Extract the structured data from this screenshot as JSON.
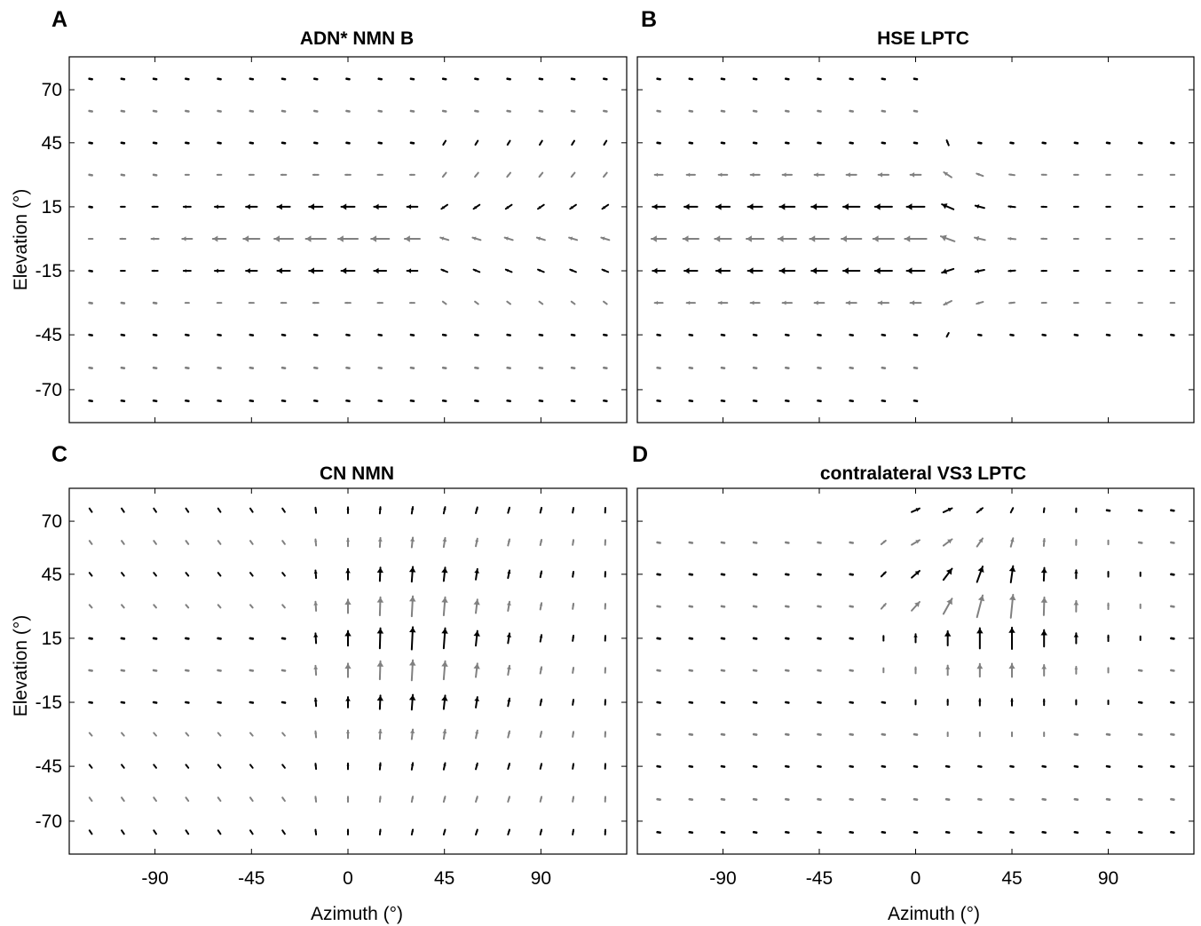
{
  "figure": {
    "colors": {
      "primary": "#000000",
      "secondary": "#808080"
    }
  },
  "chart_data": [
    {
      "type": "vector_field",
      "letter": "A",
      "title": "ADN* NMN B",
      "xlabel": "",
      "ylabel": "Elevation (°)",
      "xticks": [
        -90,
        -45,
        0,
        45,
        90
      ],
      "yticks": [
        70,
        45,
        15,
        -15,
        -45,
        -70
      ],
      "xlim": [
        -130,
        130
      ],
      "ylim": [
        -85,
        85
      ],
      "show_xtick_labels": false,
      "show_ytick_labels": true,
      "field": "A"
    },
    {
      "type": "vector_field",
      "letter": "B",
      "title": "HSE LPTC",
      "xlabel": "",
      "ylabel": "",
      "xticks": [
        -90,
        -45,
        0,
        45,
        90
      ],
      "yticks": [
        70,
        45,
        15,
        -15,
        -45,
        -70
      ],
      "xlim": [
        -130,
        130
      ],
      "ylim": [
        -85,
        85
      ],
      "show_xtick_labels": false,
      "show_ytick_labels": false,
      "field": "B"
    },
    {
      "type": "vector_field",
      "letter": "C",
      "title": "CN NMN",
      "xlabel": "Azimuth (°)",
      "ylabel": "Elevation (°)",
      "xticks": [
        -90,
        -45,
        0,
        45,
        90
      ],
      "yticks": [
        70,
        45,
        15,
        -15,
        -45,
        -70
      ],
      "xlim": [
        -130,
        130
      ],
      "ylim": [
        -85,
        85
      ],
      "show_xtick_labels": true,
      "show_ytick_labels": true,
      "field": "C"
    },
    {
      "type": "vector_field",
      "letter": "D",
      "title": "contralateral VS3 LPTC",
      "xlabel": "Azimuth (°)",
      "ylabel": "",
      "xticks": [
        -90,
        -45,
        0,
        45,
        90
      ],
      "yticks": [
        70,
        45,
        15,
        -15,
        -45,
        -70
      ],
      "xlim": [
        -130,
        130
      ],
      "ylim": [
        -85,
        85
      ],
      "show_xtick_labels": true,
      "show_ytick_labels": false,
      "field": "D"
    }
  ]
}
